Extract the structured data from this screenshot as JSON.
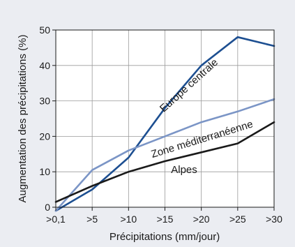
{
  "chart_data": {
    "type": "line",
    "ylabel": "Augmentation des précipitations (%)",
    "xlabel": "Précipitations (mm/jour)",
    "categories": [
      ">0,1",
      ">5",
      ">10",
      ">15",
      ">20",
      ">25",
      ">30"
    ],
    "ylim": [
      0,
      50
    ],
    "yticks": [
      0,
      10,
      20,
      30,
      40,
      50
    ],
    "grid": true,
    "series": [
      {
        "name": "Europe centrale",
        "color": "#1d4f91",
        "values": [
          -1,
          5,
          14,
          28,
          40,
          48,
          45.5
        ]
      },
      {
        "name": "Zone méditerranéenne",
        "color": "#7b95c6",
        "values": [
          -1,
          10.5,
          16,
          20,
          24,
          27,
          30.5
        ]
      },
      {
        "name": "Alpes",
        "color": "#1a1a1a",
        "values": [
          1.5,
          6,
          10,
          13,
          15.5,
          18,
          24
        ]
      }
    ]
  }
}
